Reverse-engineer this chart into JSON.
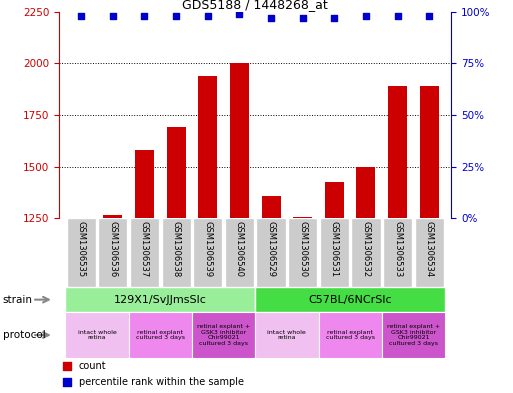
{
  "title": "GDS5188 / 1448268_at",
  "samples": [
    "GSM1306535",
    "GSM1306536",
    "GSM1306537",
    "GSM1306538",
    "GSM1306539",
    "GSM1306540",
    "GSM1306529",
    "GSM1306530",
    "GSM1306531",
    "GSM1306532",
    "GSM1306533",
    "GSM1306534"
  ],
  "counts": [
    1250,
    1265,
    1580,
    1690,
    1940,
    2000,
    1355,
    1255,
    1425,
    1500,
    1890,
    1890
  ],
  "percentiles": [
    98,
    98,
    98,
    98,
    98,
    99,
    97,
    97,
    97,
    98,
    98,
    98
  ],
  "ylim_left": [
    1250,
    2250
  ],
  "ylim_right": [
    0,
    100
  ],
  "yticks_left": [
    1250,
    1500,
    1750,
    2000,
    2250
  ],
  "yticks_right": [
    0,
    25,
    50,
    75,
    100
  ],
  "bar_color": "#cc0000",
  "dot_color": "#0000cc",
  "strains": [
    {
      "label": "129X1/SvJJmsSlc",
      "start": 0,
      "end": 6,
      "color": "#99ee99"
    },
    {
      "label": "C57BL/6NCrSlc",
      "start": 6,
      "end": 12,
      "color": "#44dd44"
    }
  ],
  "protocols": [
    {
      "label": "intact whole\nretina",
      "start": 0,
      "end": 2,
      "color": "#f0c0f0"
    },
    {
      "label": "retinal explant\ncultured 3 days",
      "start": 2,
      "end": 4,
      "color": "#ee88ee"
    },
    {
      "label": "retinal explant +\nGSK3 inhibitor\nChir99021\ncultured 3 days",
      "start": 4,
      "end": 6,
      "color": "#cc55cc"
    },
    {
      "label": "intact whole\nretina",
      "start": 6,
      "end": 8,
      "color": "#f0c0f0"
    },
    {
      "label": "retinal explant\ncultured 3 days",
      "start": 8,
      "end": 10,
      "color": "#ee88ee"
    },
    {
      "label": "retinal explant +\nGSK3 inhibitor\nChir99021\ncultured 3 days",
      "start": 10,
      "end": 12,
      "color": "#cc55cc"
    }
  ],
  "tick_color_left": "#cc0000",
  "tick_color_right": "#0000cc",
  "bg_color": "#ffffff",
  "sample_bg_color": "#cccccc",
  "grid_yticks": [
    1500,
    1750,
    2000
  ],
  "legend_count_color": "#cc0000",
  "legend_perc_color": "#0000cc"
}
